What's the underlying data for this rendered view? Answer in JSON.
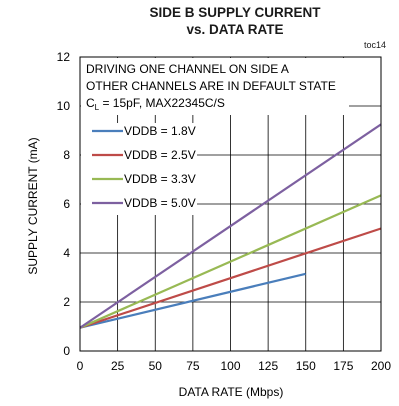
{
  "chart_data": {
    "type": "line",
    "title_line1": "SIDE B SUPPLY CURRENT",
    "title_line2": "vs. DATA RATE",
    "code": "toc14",
    "xlabel": "DATA RATE (Mbps)",
    "ylabel": "SUPPLY CURRENT (mA)",
    "xlim": [
      0,
      200
    ],
    "ylim": [
      0,
      12
    ],
    "xticks": [
      "0",
      "25",
      "50",
      "75",
      "100",
      "125",
      "150",
      "175",
      "200"
    ],
    "yticks": [
      "0",
      "2",
      "4",
      "6",
      "8",
      "10",
      "12"
    ],
    "grid": true,
    "annotation": {
      "line1": "DRIVING ONE CHANNEL ON SIDE A",
      "line2": "OTHER CHANNELS ARE IN DEFAULT STATE",
      "line3_prefix": "C",
      "line3_sub": "L",
      "line3_suffix": " = 15pF, MAX22345C/S"
    },
    "legend_position": "top-left",
    "series": [
      {
        "name": "VDDB = 1.8V",
        "color": "#4a7ebb",
        "x": [
          0,
          150
        ],
        "y": [
          0.95,
          3.15
        ]
      },
      {
        "name": "VDDB = 2.5V",
        "color": "#be4b48",
        "x": [
          0,
          200
        ],
        "y": [
          0.95,
          5.0
        ]
      },
      {
        "name": "VDDB = 3.3V",
        "color": "#98b954",
        "x": [
          0,
          200
        ],
        "y": [
          0.95,
          6.35
        ]
      },
      {
        "name": "VDDB = 5.0V",
        "color": "#7d60a0",
        "x": [
          0,
          200
        ],
        "y": [
          0.95,
          9.25
        ]
      }
    ]
  }
}
